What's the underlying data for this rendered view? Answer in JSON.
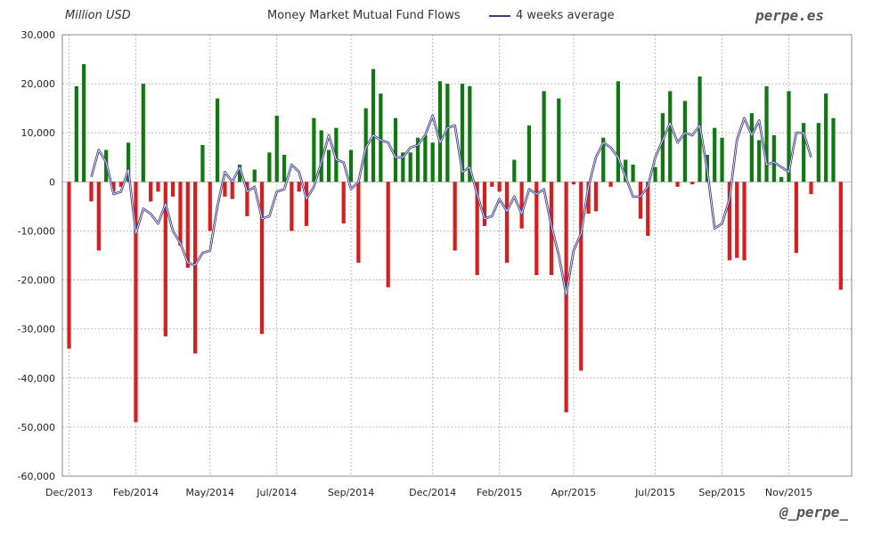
{
  "header": {
    "unit_label": "Million USD",
    "brand_top": "perpe.es",
    "brand_bottom": "@_perpe_"
  },
  "colors": {
    "positive_bar": "#0d7a0d",
    "negative_bar": "#e01a1a",
    "average_line": "#3c3c8c",
    "grid": "#bbbbbb"
  },
  "chart_data": {
    "type": "bar",
    "title": "Money Market Mutual Fund Flows",
    "ylabel": "Million USD",
    "ylim": [
      -60000,
      30000
    ],
    "yticks": [
      30000,
      20000,
      10000,
      0,
      -10000,
      -20000,
      -30000,
      -40000,
      -50000,
      -60000
    ],
    "ytick_labels": [
      "30,000",
      "20,000",
      "10,000",
      "0",
      "-10,000",
      "-20,000",
      "-30,000",
      "-40,000",
      "-50,000",
      "-60,000"
    ],
    "x_tick_labels": [
      "Dec/2013",
      "Feb/2014",
      "May/2014",
      "Jul/2014",
      "Sep/2014",
      "Dec/2014",
      "Feb/2015",
      "Apr/2015",
      "Jul/2015",
      "Sep/2015",
      "Nov/2015"
    ],
    "x_tick_weeks": [
      0,
      9,
      19,
      28,
      38,
      49,
      58,
      68,
      79,
      88,
      97
    ],
    "grid": true,
    "legend": "top-center",
    "series": [
      {
        "kind": "bar",
        "values": [
          -34000,
          19500,
          24000,
          -4000,
          -14000,
          6500,
          -2000,
          -1000,
          8000,
          -49000,
          20000,
          -4000,
          -2000,
          -31500,
          -3000,
          -13000,
          -17500,
          -35000,
          7500,
          -10000,
          17000,
          -3000,
          -3500,
          3500,
          -7000,
          2500,
          -31000,
          6000,
          13500,
          5500,
          -10000,
          -2000,
          -9000,
          13000,
          10500,
          6500,
          11000,
          -8500,
          6500,
          -16500,
          15000,
          23000,
          18000,
          -21500,
          13000,
          6000,
          6000,
          9000,
          9500,
          8000,
          20500,
          20000,
          -14000,
          20000,
          19500,
          -19000,
          -9000,
          -1000,
          -2000,
          -16500,
          4500,
          -9500,
          11500,
          -19000,
          18500,
          -19000,
          17000,
          -47000,
          -500,
          -38500,
          -6500,
          -6000,
          9000,
          -1000,
          20500,
          4500,
          3500,
          -7500,
          -11000,
          3000,
          14000,
          18500,
          -1000,
          16500,
          -500,
          21500,
          5500,
          11000,
          9000,
          -16000,
          -15500,
          -16000,
          14000,
          8500,
          19500,
          9500,
          1000,
          18500,
          -14500,
          12000,
          -2500,
          12000,
          18000,
          13000,
          -22000
        ]
      },
      {
        "name": "4 weeks average",
        "kind": "line",
        "start_week": 3,
        "values": [
          1000,
          6500,
          4000,
          -2500,
          -2000,
          2500,
          -10500,
          -5500,
          -6500,
          -8500,
          -4500,
          -10000,
          -12500,
          -16500,
          -17000,
          -14500,
          -14000,
          -5000,
          2000,
          0,
          3000,
          -2000,
          -1000,
          -7500,
          -7000,
          -2000,
          -1500,
          3500,
          2000,
          -3500,
          -1000,
          4000,
          9500,
          4500,
          4000,
          -1500,
          0,
          7000,
          9500,
          8500,
          8000,
          5000,
          5000,
          7000,
          7500,
          9500,
          13500,
          8000,
          11000,
          11500,
          2000,
          3000,
          -2500,
          -7500,
          -7000,
          -3500,
          -6000,
          -3000,
          -6500,
          -1500,
          -2500,
          -1500,
          -9000,
          -15000,
          -23000,
          -14000,
          -10500,
          -1000,
          5000,
          8000,
          7000,
          5000,
          1000,
          -3000,
          -3000,
          -1000,
          5000,
          8500,
          12000,
          8000,
          10000,
          9500,
          11500,
          2500,
          -9500,
          -8500,
          -3500,
          8500,
          13000,
          9500,
          12500,
          3500,
          4000,
          3000,
          2000,
          10000,
          10000,
          5000
        ]
      }
    ]
  }
}
